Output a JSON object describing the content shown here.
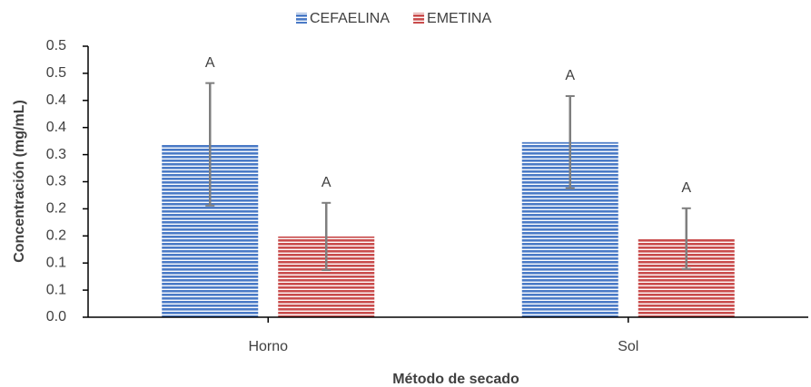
{
  "chart_data": {
    "type": "bar",
    "categories": [
      "Horno",
      "Sol"
    ],
    "series": [
      {
        "name": "CEFAELINA",
        "color": "#4a7ac6",
        "values": [
          0.319,
          0.323
        ],
        "errors": [
          0.113,
          0.085
        ],
        "labels": [
          "A",
          "A"
        ]
      },
      {
        "name": "EMETINA",
        "color": "#c94c4c",
        "values": [
          0.149,
          0.145
        ],
        "errors": [
          0.062,
          0.056
        ],
        "labels": [
          "A",
          "A"
        ]
      }
    ],
    "xlabel": "Método de secado",
    "ylabel": "Concentración (mg/mL)",
    "ylim": [
      0,
      0.5
    ],
    "yticks": [
      {
        "value": 0,
        "label": "0.0"
      },
      {
        "value": 0.05,
        "label": "0.1"
      },
      {
        "value": 0.1,
        "label": "0.1"
      },
      {
        "value": 0.15,
        "label": "0.2"
      },
      {
        "value": 0.2,
        "label": "0.2"
      },
      {
        "value": 0.25,
        "label": "0.3"
      },
      {
        "value": 0.3,
        "label": "0.3"
      },
      {
        "value": 0.35,
        "label": "0.4"
      },
      {
        "value": 0.4,
        "label": "0.4"
      },
      {
        "value": 0.45,
        "label": "0.5"
      },
      {
        "value": 0.5,
        "label": "0.5"
      }
    ],
    "legend": "top"
  }
}
